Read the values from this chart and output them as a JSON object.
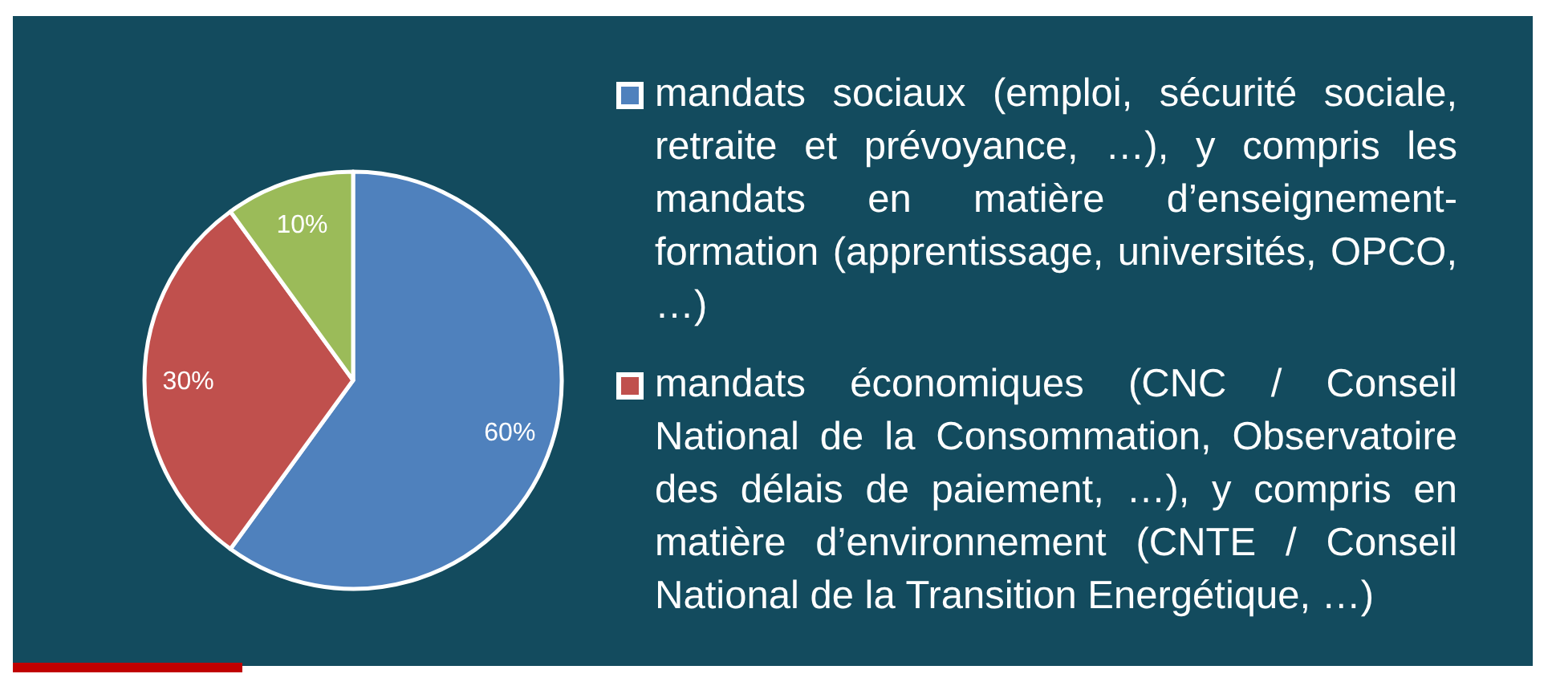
{
  "chart_data": {
    "type": "pie",
    "categories": [
      "mandats sociaux (emploi, sécurité sociale, retraite et prévoyance, …), y compris les mandats en matière d’enseignement-formation (apprentissage, universités, OPCO, …)",
      "mandats économiques (CNC / Conseil National de la Consommation, Observatoire des délais de paiement, …), y compris en matière d’environnement (CNTE / Conseil National de la Transition Energétique, …)",
      null
    ],
    "values": [
      60,
      30,
      10
    ],
    "colors": [
      "#4f81bd",
      "#c0504d",
      "#9bbb59"
    ],
    "value_labels": [
      "60%",
      "30%",
      "10%"
    ],
    "legend": "right"
  }
}
